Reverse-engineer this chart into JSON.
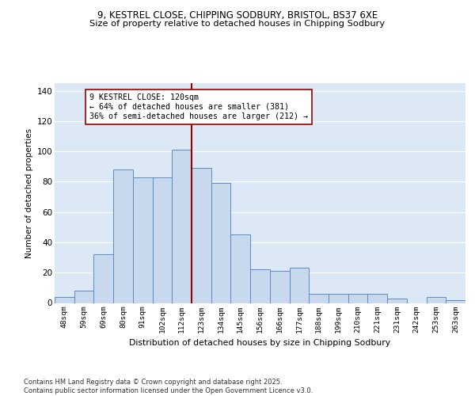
{
  "title1": "9, KESTREL CLOSE, CHIPPING SODBURY, BRISTOL, BS37 6XE",
  "title2": "Size of property relative to detached houses in Chipping Sodbury",
  "xlabel": "Distribution of detached houses by size in Chipping Sodbury",
  "ylabel": "Number of detached properties",
  "bar_categories": [
    "48sqm",
    "59sqm",
    "69sqm",
    "80sqm",
    "91sqm",
    "102sqm",
    "112sqm",
    "123sqm",
    "134sqm",
    "145sqm",
    "156sqm",
    "166sqm",
    "177sqm",
    "188sqm",
    "199sqm",
    "210sqm",
    "221sqm",
    "231sqm",
    "242sqm",
    "253sqm",
    "263sqm"
  ],
  "bar_values": [
    4,
    8,
    32,
    88,
    83,
    83,
    101,
    89,
    79,
    45,
    22,
    21,
    23,
    6,
    6,
    6,
    6,
    3,
    0,
    4,
    2
  ],
  "bar_color": "#c9d9ed",
  "bar_edge_color": "#5b8cc8",
  "property_line_color": "#990000",
  "annotation_text": "9 KESTREL CLOSE: 120sqm\n← 64% of detached houses are smaller (381)\n36% of semi-detached houses are larger (212) →",
  "annotation_box_color": "white",
  "annotation_box_edge_color": "#990000",
  "footer": "Contains HM Land Registry data © Crown copyright and database right 2025.\nContains public sector information licensed under the Open Government Licence v3.0.",
  "ylim": [
    0,
    145
  ],
  "background_color": "#dce8f5",
  "grid_color": "#ffffff",
  "line_bin_index": 7
}
